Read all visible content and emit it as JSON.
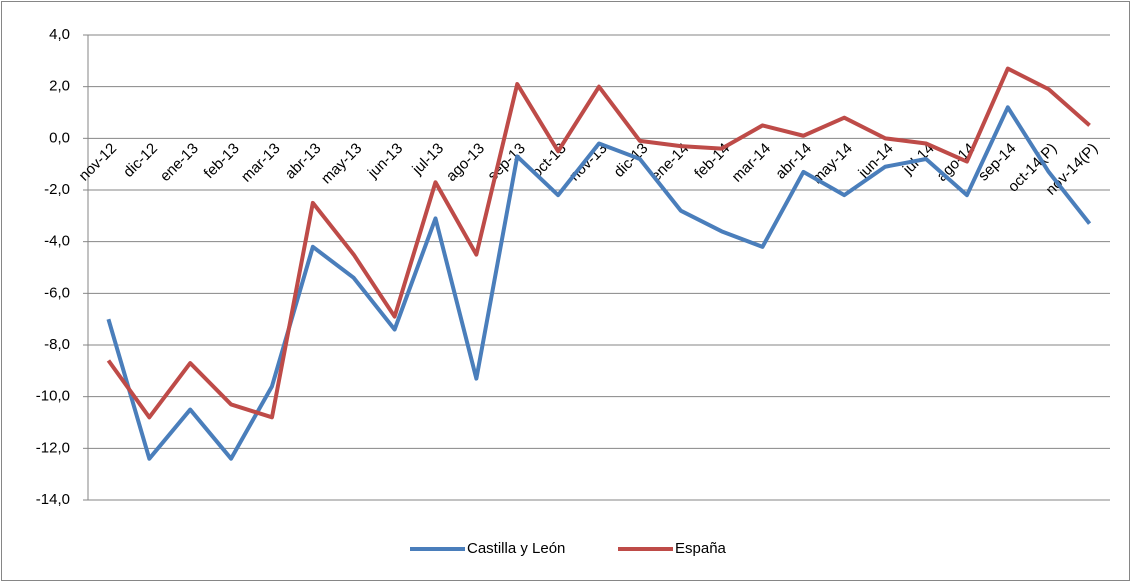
{
  "chart_data": {
    "type": "line",
    "categories": [
      "nov-12",
      "dic-12",
      "ene-13",
      "feb-13",
      "mar-13",
      "abr-13",
      "may-13",
      "jun-13",
      "jul-13",
      "ago-13",
      "sep-13",
      "oct-13",
      "nov-13",
      "dic-13",
      "ene-14",
      "feb-14",
      "mar-14",
      "abr-14",
      "may-14",
      "jun-14",
      "jul-14",
      "ago-14",
      "sep-14",
      "oct-14(P)",
      "nov-14(P)"
    ],
    "series": [
      {
        "name": "Castilla y León",
        "color": "#4a7ebb",
        "values": [
          -7.0,
          -12.4,
          -10.5,
          -12.4,
          -9.6,
          -4.2,
          -5.4,
          -7.4,
          -3.1,
          -9.3,
          -0.7,
          -2.2,
          -0.2,
          -0.8,
          -2.8,
          -3.6,
          -4.2,
          -1.3,
          -2.2,
          -1.1,
          -0.8,
          -2.2,
          1.2,
          -1.3,
          -3.3
        ]
      },
      {
        "name": "España",
        "color": "#be4b48",
        "values": [
          -8.6,
          -10.8,
          -8.7,
          -10.3,
          -10.8,
          -2.5,
          -4.5,
          -6.9,
          -1.7,
          -4.5,
          2.1,
          -0.5,
          2.0,
          -0.1,
          -0.3,
          -0.4,
          0.5,
          0.1,
          0.8,
          0.0,
          -0.2,
          -0.9,
          2.7,
          1.9,
          0.5
        ]
      }
    ],
    "ylim": [
      -14,
      4
    ],
    "yticks": [
      {
        "value": 4,
        "label": "4,0"
      },
      {
        "value": 2,
        "label": "2,0"
      },
      {
        "value": 0,
        "label": "0,0"
      },
      {
        "value": -2,
        "label": "-2,0"
      },
      {
        "value": -4,
        "label": "-4,0"
      },
      {
        "value": -6,
        "label": "-6,0"
      },
      {
        "value": -8,
        "label": "-8,0"
      },
      {
        "value": -10,
        "label": "-10,0"
      },
      {
        "value": -12,
        "label": "-12,0"
      },
      {
        "value": -14,
        "label": "-14,0"
      }
    ],
    "grid": true,
    "legend": "bottom"
  }
}
